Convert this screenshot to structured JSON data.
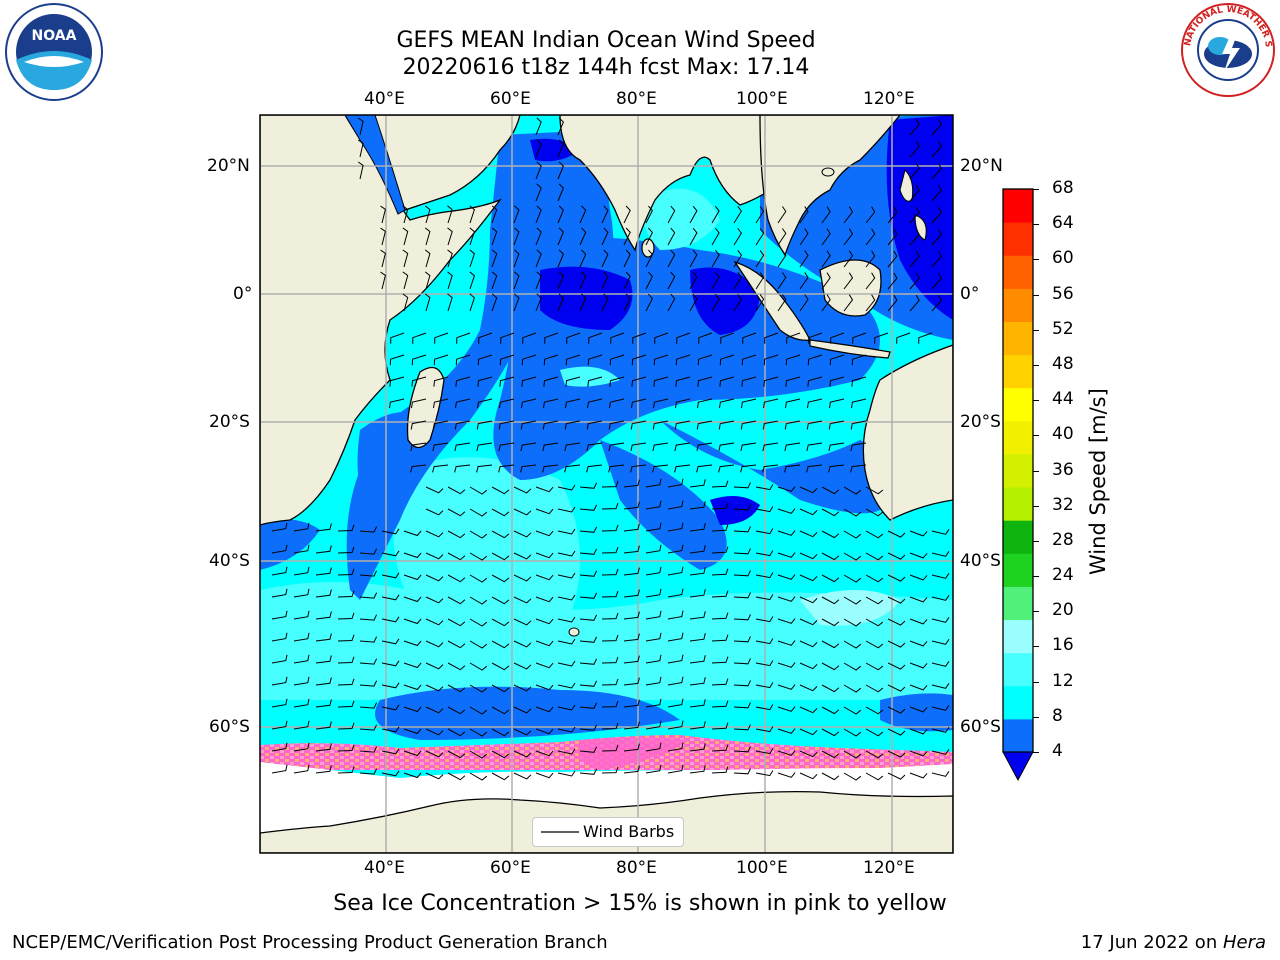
{
  "title": {
    "line1": "GEFS MEAN Indian Ocean Wind Speed",
    "line2": "20220616 t18z 144h fcst   Max: 17.14"
  },
  "logos": {
    "left": {
      "icon": "noaa-logo",
      "text": "NOAA"
    },
    "right": {
      "icon": "nws-logo",
      "text": "NATIONAL WEATHER SERVICE"
    }
  },
  "axes": {
    "lon_labels": [
      "40°E",
      "60°E",
      "80°E",
      "100°E",
      "120°E"
    ],
    "lat_labels": [
      "20°N",
      "0°",
      "20°S",
      "40°S",
      "60°S"
    ]
  },
  "legend": {
    "label": "Wind Barbs"
  },
  "colorbar": {
    "title": "Wind Speed [m/s]",
    "ticks": [
      "4",
      "8",
      "12",
      "16",
      "20",
      "24",
      "28",
      "32",
      "36",
      "40",
      "44",
      "48",
      "52",
      "56",
      "60",
      "64",
      "68"
    ],
    "colors": [
      "#0d6efc",
      "#00ffff",
      "#48ffff",
      "#9cffff",
      "#51f07a",
      "#1fd21f",
      "#0fb40f",
      "#b4f000",
      "#d2f000",
      "#f0f000",
      "#ffff00",
      "#ffd200",
      "#ffb400",
      "#ff8c00",
      "#ff6000",
      "#ff3000",
      "#ff0000"
    ],
    "under_color": "#0000f0"
  },
  "caption": "Sea Ice Concentration > 15% is shown in pink to yellow",
  "footer": {
    "left": "NCEP/EMC/Verification Post Processing Product Generation Branch",
    "right_date": "17 Jun 2022 on ",
    "right_host": "Hera"
  }
}
